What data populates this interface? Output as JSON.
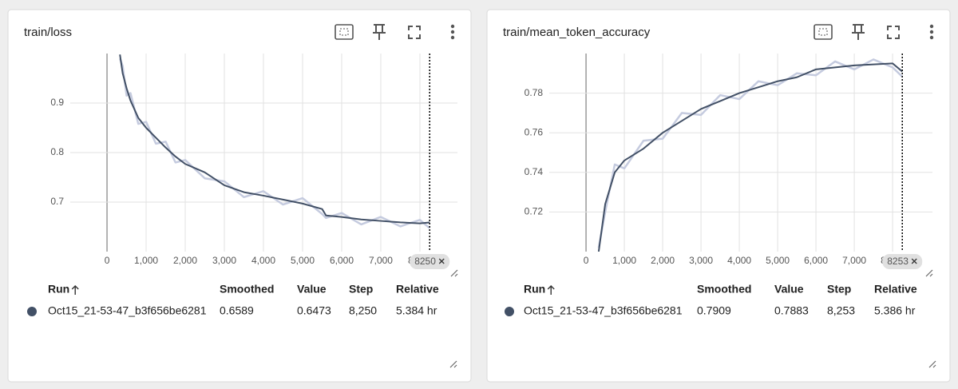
{
  "chart_data": [
    {
      "type": "line",
      "title": "train/loss",
      "x": [
        330,
        400,
        500,
        600,
        800,
        1000,
        1250,
        1500,
        1750,
        2000,
        2500,
        3000,
        3500,
        4000,
        4500,
        5000,
        5500,
        5600,
        6000,
        6500,
        7000,
        7500,
        8000,
        8250
      ],
      "series": [
        {
          "color": "#c5cbdf",
          "values": [
            0.99,
            0.975,
            0.915,
            0.92,
            0.858,
            0.862,
            0.818,
            0.822,
            0.78,
            0.785,
            0.748,
            0.742,
            0.71,
            0.722,
            0.695,
            0.708,
            0.676,
            0.668,
            0.678,
            0.655,
            0.67,
            0.651,
            0.664,
            0.6473
          ]
        },
        {
          "color": "#425066",
          "values": [
            0.998,
            0.96,
            0.93,
            0.905,
            0.87,
            0.85,
            0.83,
            0.81,
            0.792,
            0.777,
            0.76,
            0.734,
            0.72,
            0.713,
            0.705,
            0.697,
            0.686,
            0.673,
            0.67,
            0.665,
            0.662,
            0.659,
            0.657,
            0.6589
          ]
        }
      ],
      "xlim": [
        -940,
        8960
      ],
      "xticks": [
        0,
        {
          "value": 1000,
          "label": "1,000"
        },
        {
          "value": 2000,
          "label": "2,000"
        },
        {
          "value": 3000,
          "label": "3,000"
        },
        {
          "value": 4000,
          "label": "4,000"
        },
        {
          "value": 5000,
          "label": "5,000"
        },
        {
          "value": 6000,
          "label": "6,000"
        },
        {
          "value": 7000,
          "label": "7,000"
        },
        {
          "value": 8000,
          "label": "8,000"
        }
      ],
      "ylim": [
        0.6,
        1.0
      ],
      "yticks": [
        0.7,
        0.8,
        0.9
      ],
      "grid": true,
      "cursor_step": 8250
    },
    {
      "type": "line",
      "title": "train/mean_token_accuracy",
      "x": [
        330,
        500,
        750,
        1000,
        1500,
        2000,
        2500,
        3000,
        3500,
        4000,
        4500,
        5000,
        5500,
        6000,
        6500,
        7000,
        7500,
        8000,
        8253
      ],
      "series": [
        {
          "color": "#c5cbdf",
          "values": [
            0.702,
            0.72,
            0.744,
            0.742,
            0.756,
            0.757,
            0.77,
            0.769,
            0.779,
            0.777,
            0.786,
            0.784,
            0.79,
            0.789,
            0.796,
            0.792,
            0.797,
            0.793,
            0.7883
          ]
        },
        {
          "color": "#425066",
          "values": [
            0.7,
            0.724,
            0.74,
            0.746,
            0.752,
            0.76,
            0.766,
            0.772,
            0.776,
            0.78,
            0.783,
            0.786,
            0.788,
            0.792,
            0.793,
            0.794,
            0.7945,
            0.795,
            0.7909
          ]
        }
      ],
      "xlim": [
        -960,
        9040
      ],
      "xticks": [
        0,
        {
          "value": 1000,
          "label": "1,000"
        },
        {
          "value": 2000,
          "label": "2,000"
        },
        {
          "value": 3000,
          "label": "3,000"
        },
        {
          "value": 4000,
          "label": "4,000"
        },
        {
          "value": 5000,
          "label": "5,000"
        },
        {
          "value": 6000,
          "label": "6,000"
        },
        {
          "value": 7000,
          "label": "7,000"
        },
        {
          "value": 8000,
          "label": "8,000"
        }
      ],
      "ylim": [
        0.7,
        0.8
      ],
      "yticks": [
        0.72,
        0.74,
        0.76,
        0.78
      ],
      "grid": true,
      "cursor_step": 8253
    }
  ],
  "tables": [
    {
      "columns": [
        "Run",
        "Smoothed",
        "Value",
        "Step",
        "Relative"
      ],
      "rows": [
        [
          "Oct15_21-53-47_b3f656be6281",
          "0.6589",
          "0.6473",
          "8,250",
          "5.384 hr"
        ]
      ]
    },
    {
      "columns": [
        "Run",
        "Smoothed",
        "Value",
        "Step",
        "Relative"
      ],
      "rows": [
        [
          "Oct15_21-53-47_b3f656be6281",
          "0.7909",
          "0.7883",
          "8,253",
          "5.386 hr"
        ]
      ]
    }
  ]
}
